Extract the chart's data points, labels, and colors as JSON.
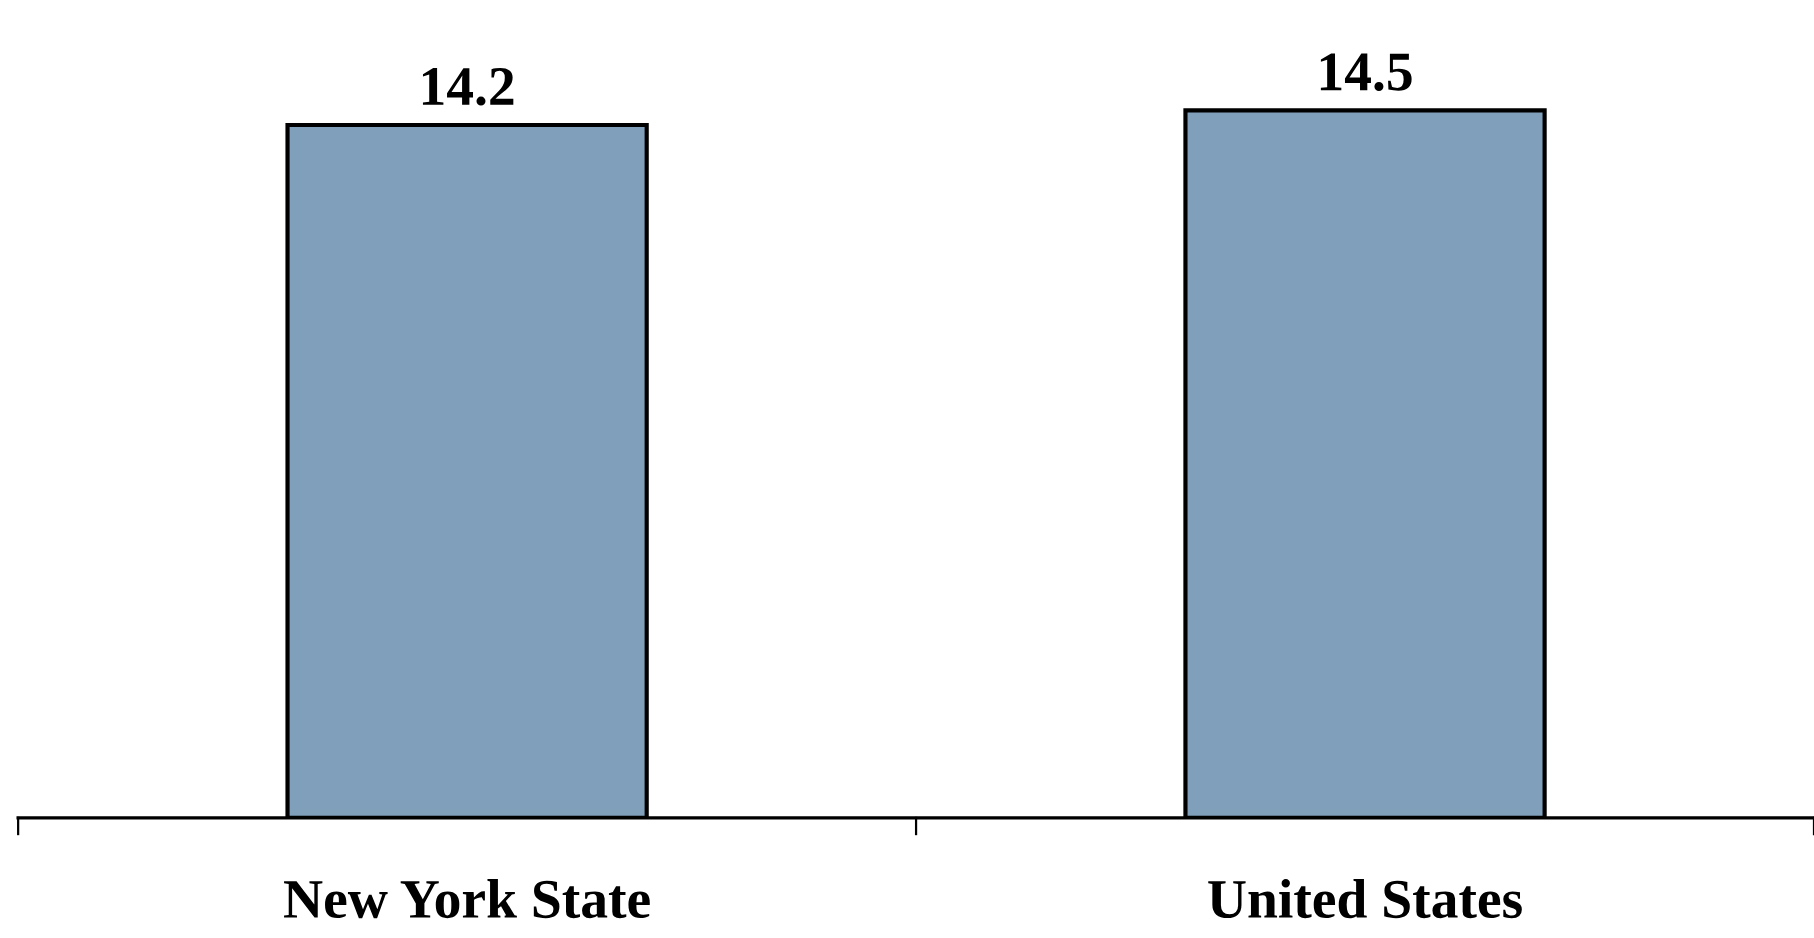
{
  "chart_data": {
    "type": "bar",
    "categories": [
      "New York State",
      "United States"
    ],
    "values": [
      14.2,
      14.5
    ],
    "color": "#7f9fba",
    "data_labels": true,
    "grid": false,
    "legend": false
  }
}
